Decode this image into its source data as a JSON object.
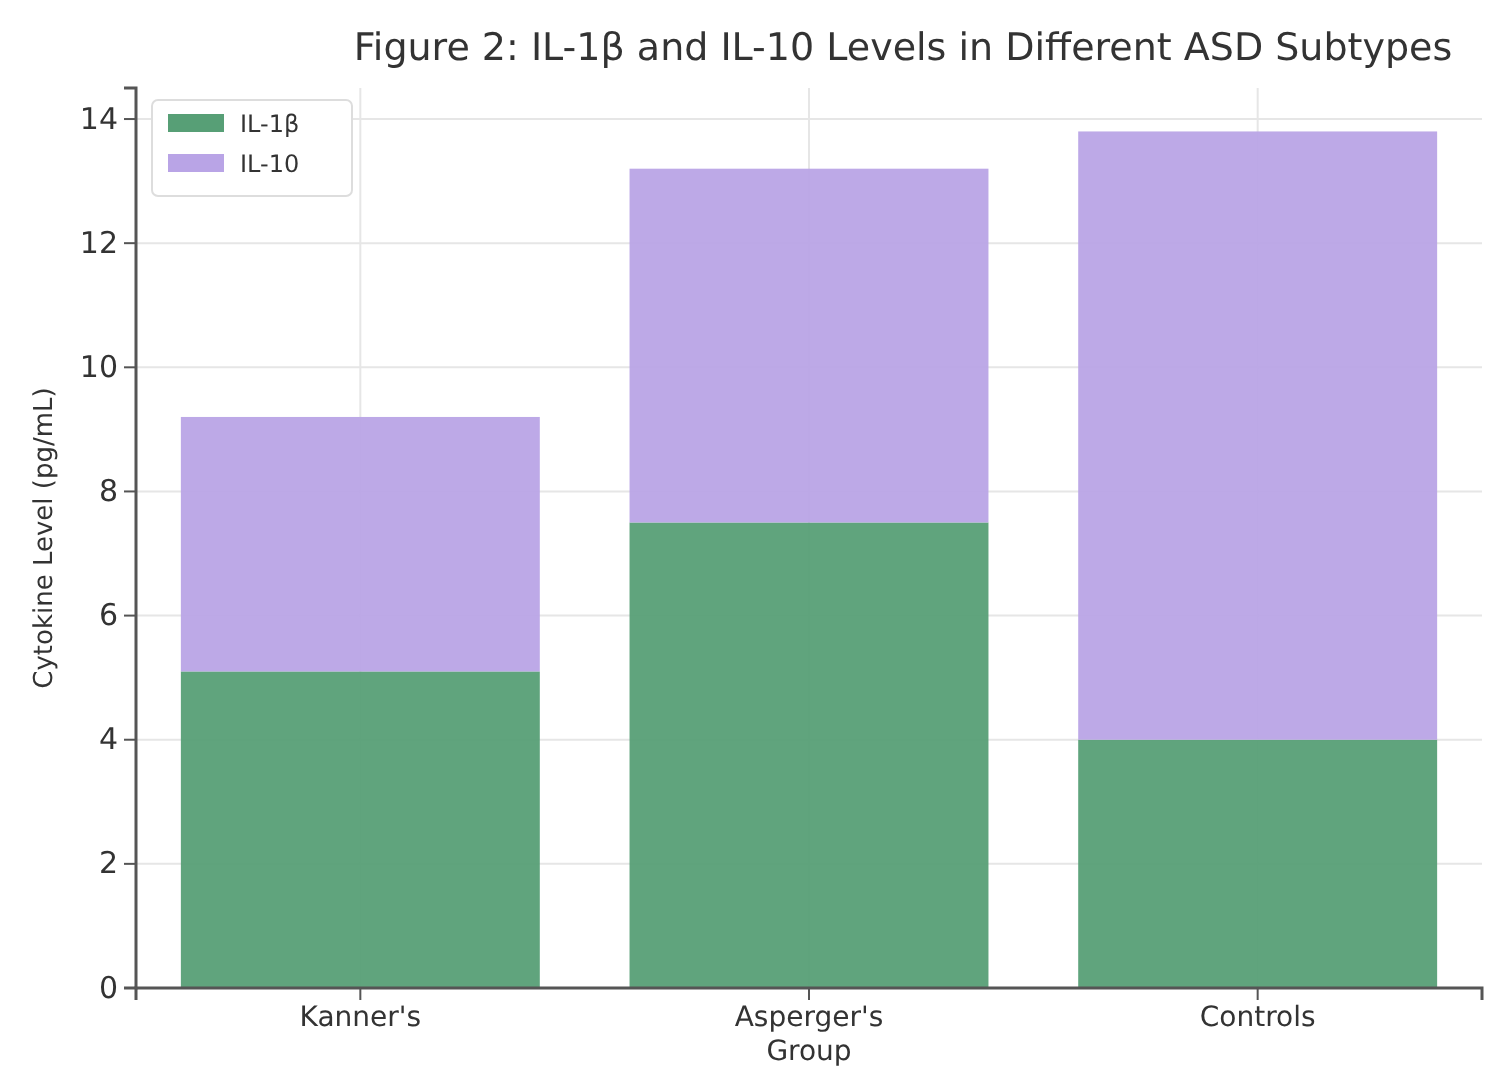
{
  "chart_data": {
    "type": "bar",
    "title": "Figure 2: IL-1β and IL-10 Levels in Different ASD Subtypes",
    "xlabel": "Group",
    "ylabel": "Cytokine Level (pg/mL)",
    "categories": [
      "Kanner's",
      "Asperger's",
      "Controls"
    ],
    "stacked": true,
    "series": [
      {
        "name": "IL-1β",
        "color": "#579f76",
        "values": [
          5.1,
          7.5,
          4.0
        ]
      },
      {
        "name": "IL-10",
        "color": "#b9a4e6",
        "values": [
          4.1,
          5.7,
          9.8
        ]
      }
    ],
    "ylim": [
      0,
      14.5
    ],
    "yticks": [
      0,
      2,
      4,
      6,
      8,
      10,
      12,
      14
    ],
    "grid": true,
    "legend": "top left"
  }
}
